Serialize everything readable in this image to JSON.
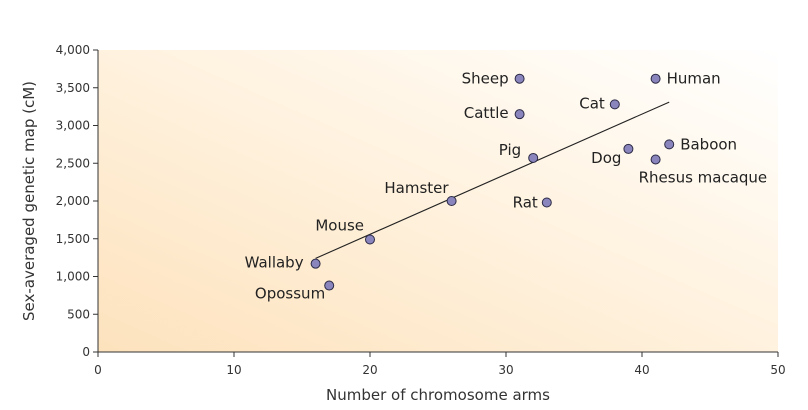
{
  "chart_data": {
    "type": "scatter",
    "title": "",
    "xlabel": "Number of chromosome arms",
    "ylabel": "Sex-averaged genetic map (cM)",
    "xlim": [
      0,
      50
    ],
    "ylim": [
      0,
      4000
    ],
    "x_ticks": [
      0,
      10,
      20,
      30,
      40,
      50
    ],
    "y_ticks": [
      0,
      500,
      1000,
      1500,
      2000,
      2500,
      3000,
      3500,
      4000
    ],
    "x_tick_labels": [
      "0",
      "10",
      "20",
      "30",
      "40",
      "50"
    ],
    "y_tick_labels": [
      "0",
      "500",
      "1,000",
      "1,500",
      "2,000",
      "2,500",
      "3,000",
      "3,500",
      "4,000"
    ],
    "grid": false,
    "points": [
      {
        "label": "Sheep",
        "x": 31,
        "y": 3620
      },
      {
        "label": "Human",
        "x": 41,
        "y": 3620
      },
      {
        "label": "Cattle",
        "x": 31,
        "y": 3150
      },
      {
        "label": "Cat",
        "x": 38,
        "y": 3280
      },
      {
        "label": "Baboon",
        "x": 42,
        "y": 2750
      },
      {
        "label": "Dog",
        "x": 39,
        "y": 2690
      },
      {
        "label": "Pig",
        "x": 32,
        "y": 2570
      },
      {
        "label": "Rhesus macaque",
        "x": 41,
        "y": 2550
      },
      {
        "label": "Hamster",
        "x": 26,
        "y": 2000
      },
      {
        "label": "Rat",
        "x": 33,
        "y": 1980
      },
      {
        "label": "Mouse",
        "x": 20,
        "y": 1490
      },
      {
        "label": "Wallaby",
        "x": 16,
        "y": 1170
      },
      {
        "label": "Opossum",
        "x": 17,
        "y": 880
      }
    ],
    "trend_line": {
      "x": [
        16,
        42
      ],
      "y": [
        1240,
        3310
      ]
    },
    "colors": {
      "point_fill": "#8a86bd",
      "background_warm": "#fde2bd"
    }
  }
}
